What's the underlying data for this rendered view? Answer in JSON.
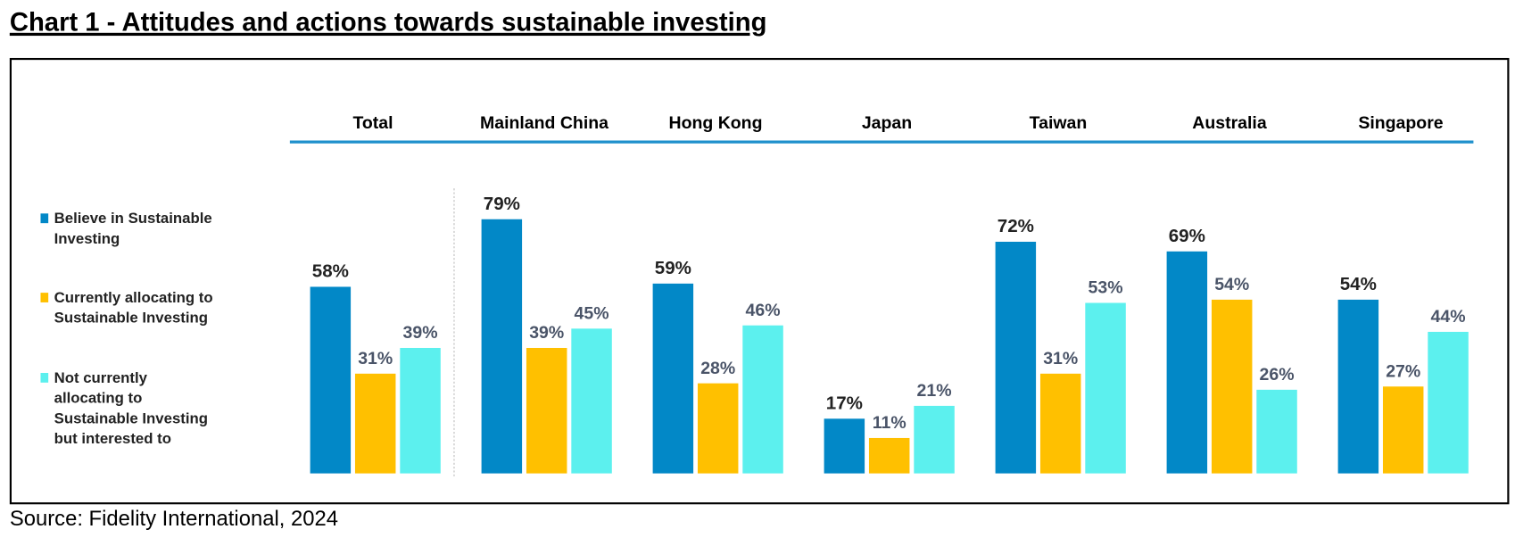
{
  "title": "Chart 1 - Attitudes and actions towards sustainable investing",
  "source": "Source: Fidelity International, 2024",
  "chart_data": {
    "type": "bar",
    "categories": [
      "Total",
      "Mainland China",
      "Hong Kong",
      "Japan",
      "Taiwan",
      "Australia",
      "Singapore"
    ],
    "series": [
      {
        "name": "Believe in Sustainable Investing",
        "legend_lines": [
          "Believe in Sustainable",
          "Investing"
        ],
        "color": "#0288C7",
        "values": [
          58,
          79,
          59,
          17,
          72,
          69,
          54
        ]
      },
      {
        "name": "Currently allocating to Sustainable Investing",
        "legend_lines": [
          "Currently allocating to",
          "Sustainable Investing"
        ],
        "color": "#FFC000",
        "values": [
          31,
          39,
          28,
          11,
          31,
          54,
          27
        ]
      },
      {
        "name": "Not currently allocating to Sustainable Investing but interested to",
        "legend_lines": [
          "Not currently",
          "allocating to",
          "Sustainable Investing",
          "but interested to"
        ],
        "color": "#5CF0EE",
        "values": [
          39,
          45,
          46,
          21,
          53,
          26,
          44
        ]
      }
    ],
    "value_format": "%",
    "ylim": [
      0,
      100
    ],
    "grid": false,
    "legend_position": "left",
    "header_line_color": "#1E90CC"
  }
}
